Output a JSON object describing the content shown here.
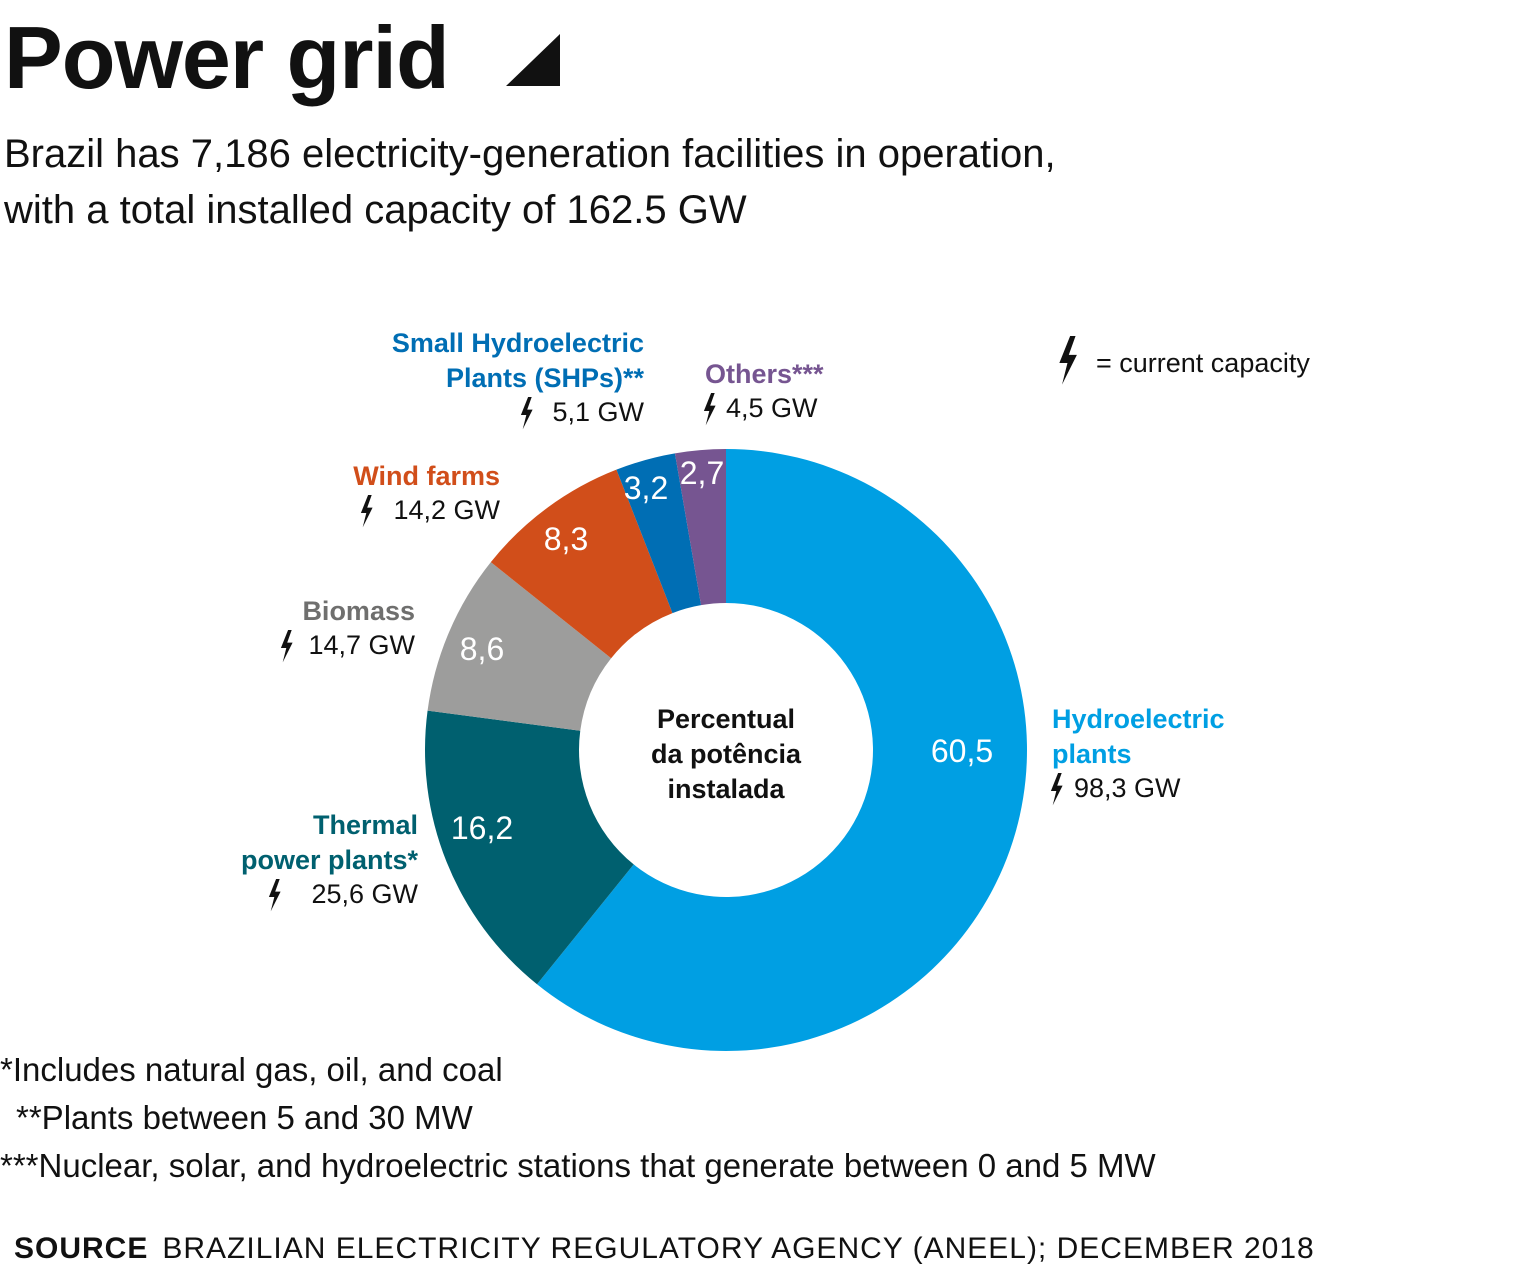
{
  "title": "Power grid",
  "subtitle_lines": [
    "Brazil has 7,186 electricity-generation facilities in operation,",
    "with a total installed capacity of 162.5 GW"
  ],
  "legend_note": "= current capacity",
  "center_label": [
    "Percentual",
    "da potência",
    "instalada"
  ],
  "chart_data": {
    "type": "pie",
    "title": "Power grid",
    "slices": [
      {
        "name_lines": [
          "Hydroelectric",
          "plants"
        ],
        "value": 60.5,
        "value_label": "60,5",
        "capacity": "98,3 GW",
        "color": "#009fe3",
        "label_color": "#009fe3"
      },
      {
        "name_lines": [
          "Thermal",
          "power plants*"
        ],
        "value": 16.2,
        "value_label": "16,2",
        "capacity": "25,6 GW",
        "color": "#00606f",
        "label_color": "#00606f"
      },
      {
        "name_lines": [
          "Biomass"
        ],
        "value": 8.6,
        "value_label": "8,6",
        "capacity": "14,7 GW",
        "color": "#9d9d9c",
        "label_color": "#6f6f6e"
      },
      {
        "name_lines": [
          "Wind farms"
        ],
        "value": 8.3,
        "value_label": "8,3",
        "capacity": "14,2 GW",
        "color": "#d14e1a",
        "label_color": "#d14e1a"
      },
      {
        "name_lines": [
          "Small Hydroelectric",
          "Plants (SHPs)**"
        ],
        "value": 3.2,
        "value_label": "3,2",
        "capacity": "5,1 GW",
        "color": "#006eb4",
        "label_color": "#006eb4"
      },
      {
        "name_lines": [
          "Others***"
        ],
        "value": 2.7,
        "value_label": "2,7",
        "capacity": "4,5 GW",
        "color": "#765591",
        "label_color": "#765591"
      }
    ]
  },
  "footnotes": [
    "*Includes natural gas, oil, and coal",
    "**Plants between 5 and 30 MW",
    "***Nuclear, solar, and hydroelectric stations that generate between 0 and 5 MW"
  ],
  "source": {
    "label": "SOURCE",
    "text": "BRAZILIAN ELECTRICITY REGULATORY AGENCY (ANEEL); DECEMBER 2018"
  }
}
